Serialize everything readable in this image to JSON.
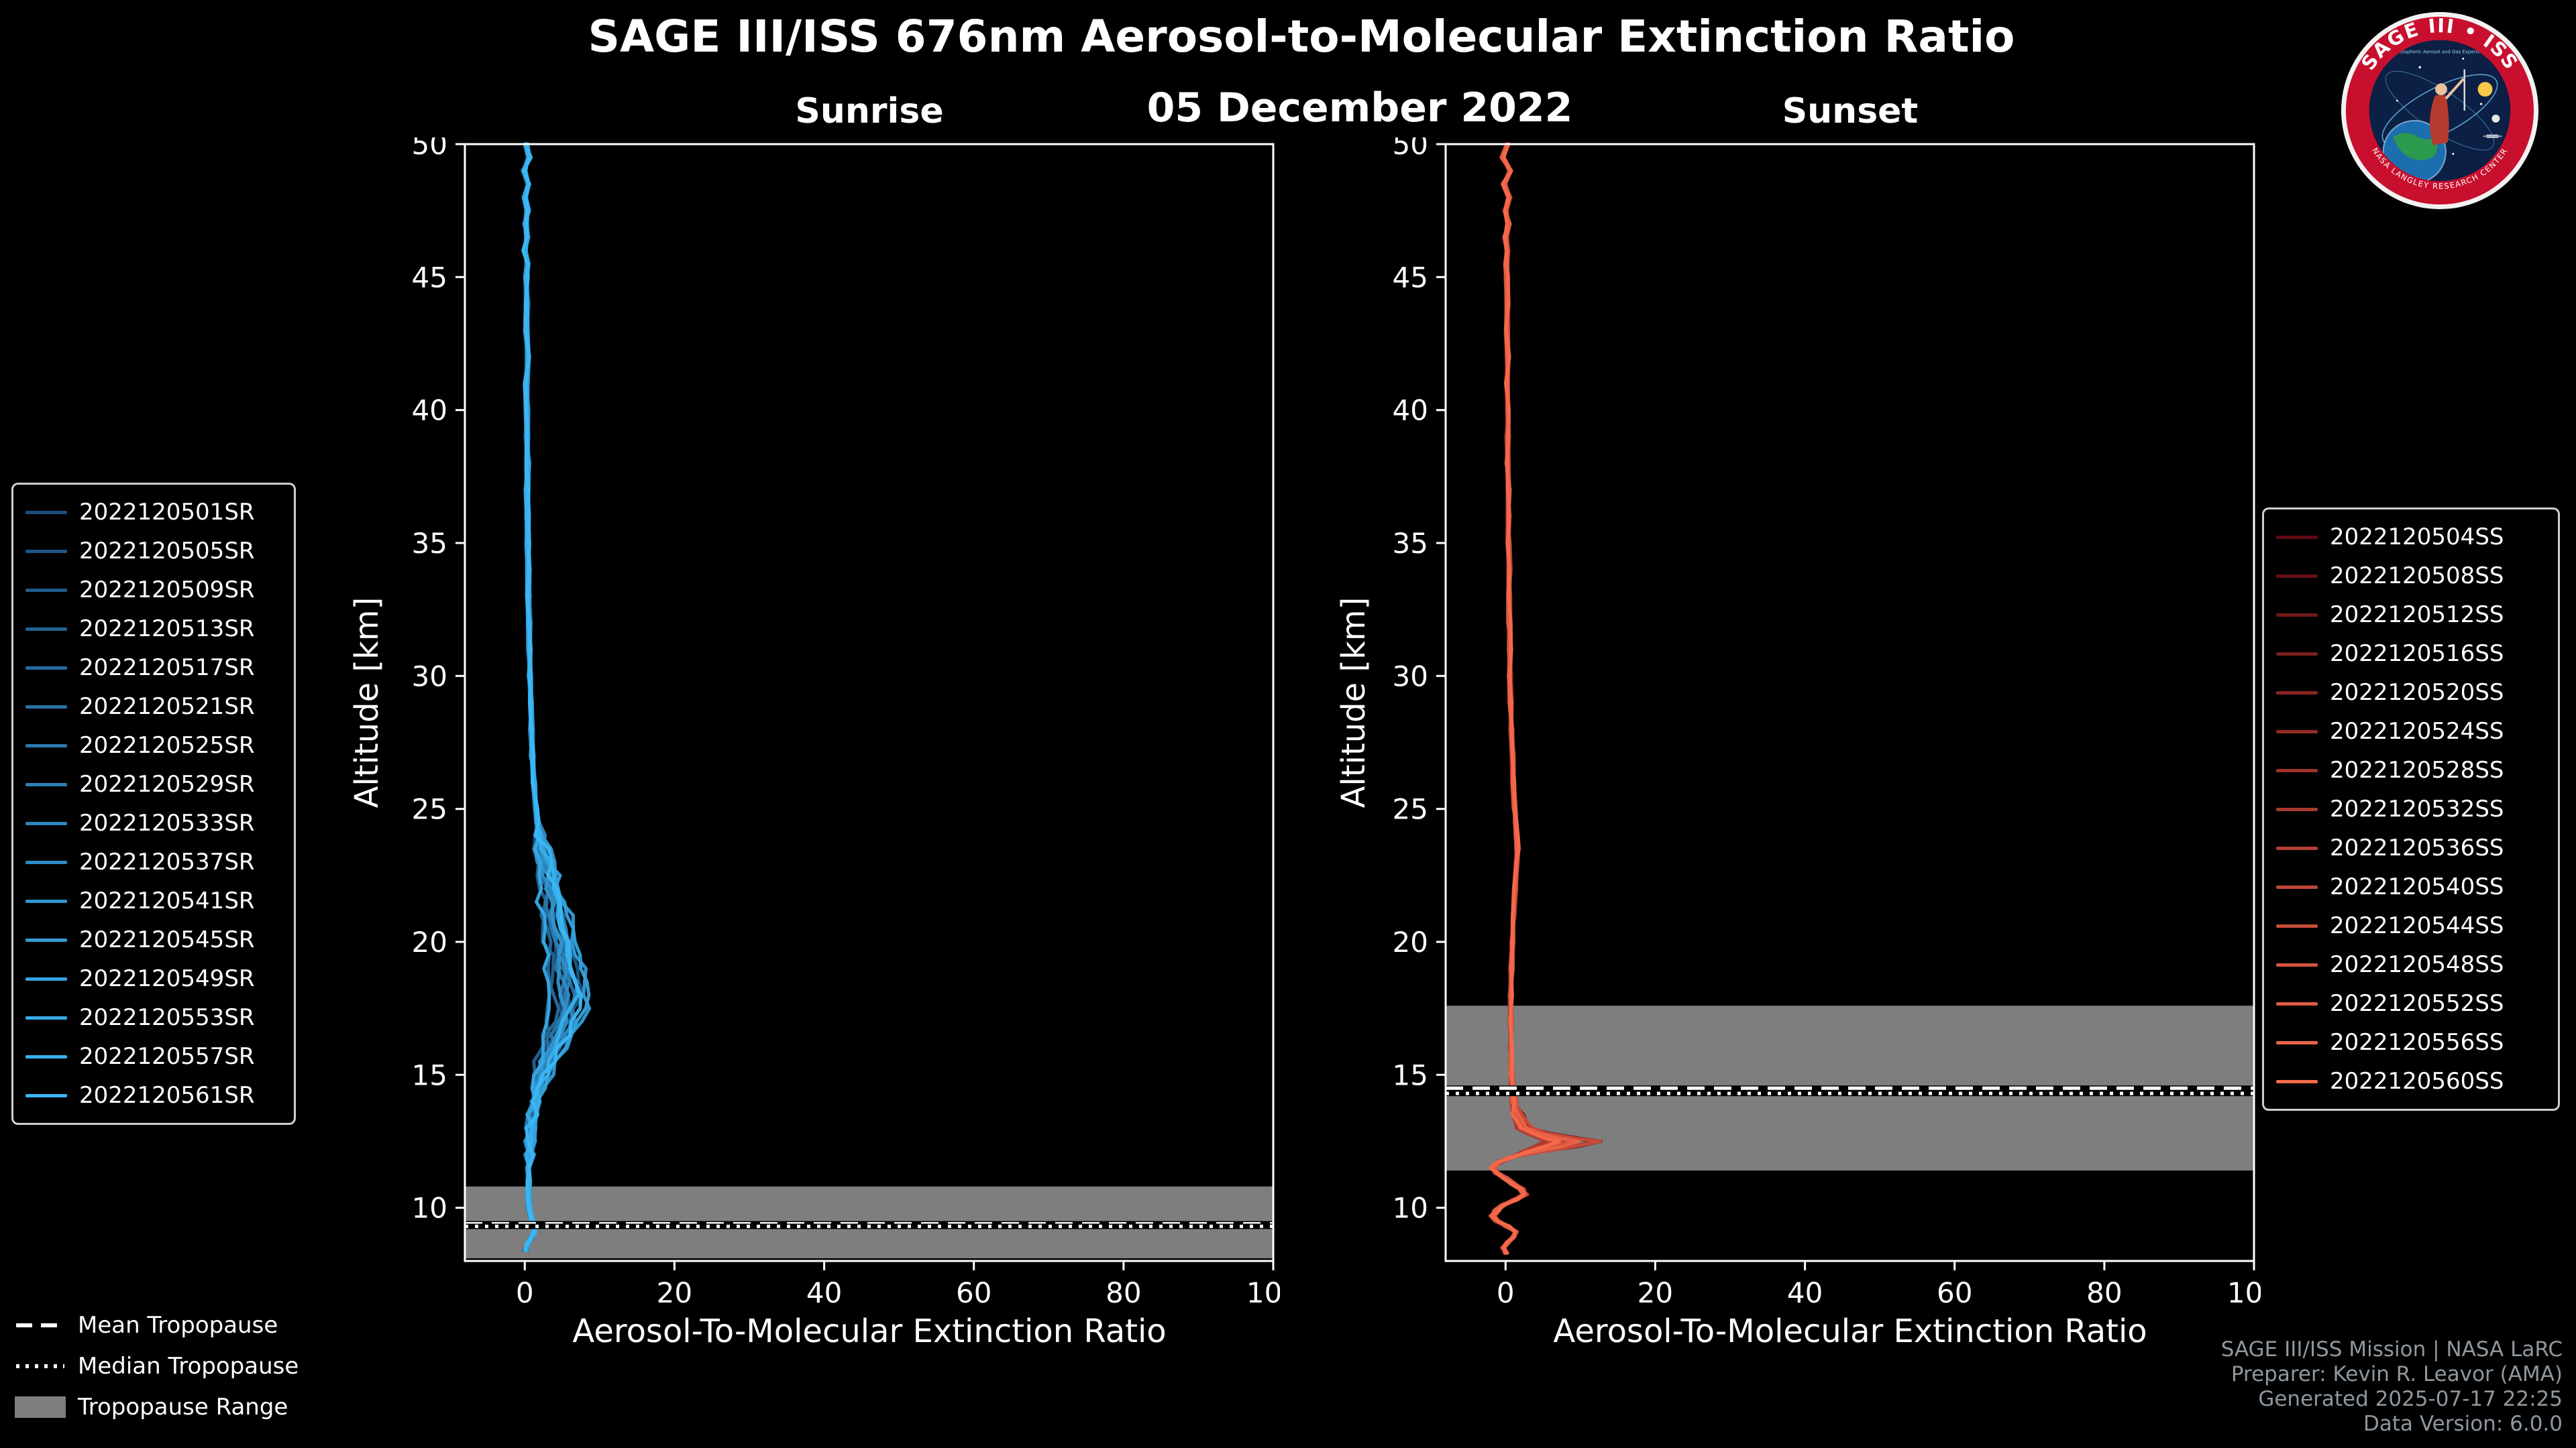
{
  "title": "SAGE III/ISS 676nm Aerosol-to-Molecular Extinction Ratio",
  "date": "05 December 2022",
  "credits": [
    "SAGE III/ISS Mission | NASA LaRC",
    "Preparer: Kevin R. Leavor (AMA)",
    "Generated 2025-07-17 22:25",
    "Data Version: 6.0.0"
  ],
  "tropopause_legend": [
    "Mean Tropopause",
    "Median Tropopause",
    "Tropopause Range"
  ],
  "logo": {
    "arc_top": "SAGE III • ISS",
    "arc_bottom": "NASA LANGLEY RESEARCH CENTER",
    "tagline": "Stratospheric Aerosol and Gas Experiment"
  },
  "colors": {
    "background": "#000000",
    "foreground": "#ffffff",
    "tropopause_band": "#7e7e7e",
    "credits_text": "#8f979e",
    "sunrise_dark": "#1d4f7c",
    "sunrise_light": "#3bb7f5",
    "sunset_dark": "#5e0a12",
    "sunset_light": "#f4694b"
  },
  "chart_data": [
    {
      "type": "line",
      "id": "sunrise",
      "title": "Sunrise",
      "xlabel": "Aerosol-To-Molecular Extinction Ratio",
      "ylabel": "Altitude [km]",
      "xlim": [
        -8,
        100
      ],
      "ylim": [
        8,
        50
      ],
      "xticks": [
        0,
        20,
        40,
        60,
        80,
        100
      ],
      "yticks": [
        10,
        15,
        20,
        25,
        30,
        35,
        40,
        45,
        50
      ],
      "grid": false,
      "legend_position": "outside-left",
      "color_start": "#1d4f7c",
      "color_end": "#3bb7f5",
      "series_labels": [
        "2022120501SR",
        "2022120505SR",
        "2022120509SR",
        "2022120513SR",
        "2022120517SR",
        "2022120521SR",
        "2022120525SR",
        "2022120529SR",
        "2022120533SR",
        "2022120537SR",
        "2022120541SR",
        "2022120545SR",
        "2022120549SR",
        "2022120553SR",
        "2022120557SR",
        "2022120561SR"
      ],
      "tropopause": {
        "mean_km": 9.4,
        "median_km": 9.3,
        "range_km": [
          8.1,
          10.8
        ]
      },
      "profile_shape": {
        "altitude_km": [
          50,
          49.5,
          49,
          48.5,
          48,
          47.5,
          47,
          46.5,
          46,
          45.5,
          45,
          44,
          43,
          42,
          41,
          40,
          39,
          38,
          37,
          36,
          35,
          34,
          33,
          32,
          31,
          30,
          29,
          28,
          27,
          26,
          25,
          24.5,
          24,
          23.5,
          23,
          22.5,
          22,
          21.5,
          21,
          20.5,
          20,
          19.5,
          19,
          18.5,
          18,
          17.5,
          17,
          16.5,
          16,
          15.5,
          15,
          14.5,
          14,
          13.5,
          13,
          12.5,
          12,
          11.5,
          11,
          10.5,
          10,
          9.6,
          9.3,
          9,
          8.8,
          8.6,
          8.4
        ],
        "ratio": [
          0.2,
          0.6,
          -0.1,
          0.5,
          0.0,
          0.4,
          0.1,
          0.3,
          0.0,
          0.4,
          0.2,
          0.3,
          0.2,
          0.4,
          0.2,
          0.3,
          0.3,
          0.4,
          0.3,
          0.4,
          0.4,
          0.5,
          0.5,
          0.6,
          0.6,
          0.7,
          0.8,
          0.9,
          1.0,
          1.2,
          1.5,
          1.7,
          2.0,
          2.4,
          2.8,
          3.3,
          3.8,
          4.1,
          4.4,
          4.6,
          5.0,
          5.4,
          5.8,
          6.2,
          6.4,
          6.2,
          5.7,
          5.0,
          4.1,
          3.2,
          2.4,
          1.8,
          1.3,
          1.0,
          0.8,
          0.7,
          0.6,
          0.5,
          0.5,
          0.5,
          0.6,
          0.9,
          1.4,
          1.2,
          0.7,
          0.3,
          0.1
        ]
      }
    },
    {
      "type": "line",
      "id": "sunset",
      "title": "Sunset",
      "xlabel": "Aerosol-To-Molecular Extinction Ratio",
      "ylabel": "Altitude [km]",
      "xlim": [
        -8,
        100
      ],
      "ylim": [
        8,
        50
      ],
      "xticks": [
        0,
        20,
        40,
        60,
        80,
        100
      ],
      "yticks": [
        10,
        15,
        20,
        25,
        30,
        35,
        40,
        45,
        50
      ],
      "grid": false,
      "legend_position": "outside-right",
      "color_start": "#5e0a12",
      "color_end": "#f4694b",
      "series_labels": [
        "2022120504SS",
        "2022120508SS",
        "2022120512SS",
        "2022120516SS",
        "2022120520SS",
        "2022120524SS",
        "2022120528SS",
        "2022120532SS",
        "2022120536SS",
        "2022120540SS",
        "2022120544SS",
        "2022120548SS",
        "2022120552SS",
        "2022120556SS",
        "2022120560SS"
      ],
      "tropopause": {
        "mean_km": 14.5,
        "median_km": 14.3,
        "range_km": [
          11.4,
          17.6
        ]
      },
      "profile_shape": {
        "altitude_km": [
          50,
          49.5,
          49,
          48.5,
          48,
          47.5,
          47,
          46.5,
          46,
          45.5,
          45,
          44,
          43,
          42,
          41,
          40,
          39,
          38,
          37,
          36,
          35,
          34,
          33,
          32,
          31,
          30,
          29,
          28,
          27,
          26,
          25,
          24.5,
          24,
          23.5,
          23,
          22,
          21,
          20,
          19,
          18,
          17,
          16,
          15,
          14.5,
          14,
          13.5,
          13,
          12.8,
          12.6,
          12.5,
          12.3,
          12.1,
          11.9,
          11.7,
          11.5,
          11.3,
          11.1,
          10.9,
          10.7,
          10.5,
          10.3,
          10.1,
          9.9,
          9.7,
          9.5,
          9.3,
          9.1,
          8.9,
          8.7,
          8.5,
          8.3
        ],
        "ratio": [
          0.3,
          -0.4,
          0.6,
          -0.2,
          0.5,
          0.0,
          0.4,
          0.0,
          0.3,
          0.1,
          0.2,
          0.3,
          0.2,
          0.3,
          0.2,
          0.3,
          0.3,
          0.3,
          0.4,
          0.4,
          0.4,
          0.5,
          0.5,
          0.5,
          0.6,
          0.6,
          0.7,
          0.8,
          0.9,
          1.0,
          1.2,
          1.4,
          1.5,
          1.6,
          1.5,
          1.3,
          1.1,
          0.9,
          0.8,
          0.7,
          0.7,
          0.7,
          0.8,
          0.9,
          1.1,
          1.6,
          2.8,
          4.5,
          7.5,
          9.5,
          7.0,
          3.5,
          0.8,
          -1.0,
          -1.8,
          -1.2,
          0.0,
          1.0,
          2.2,
          2.6,
          1.2,
          -0.4,
          -1.2,
          -1.7,
          -1.1,
          0.2,
          1.4,
          1.0,
          0.3,
          -0.3,
          0.1
        ]
      }
    }
  ]
}
